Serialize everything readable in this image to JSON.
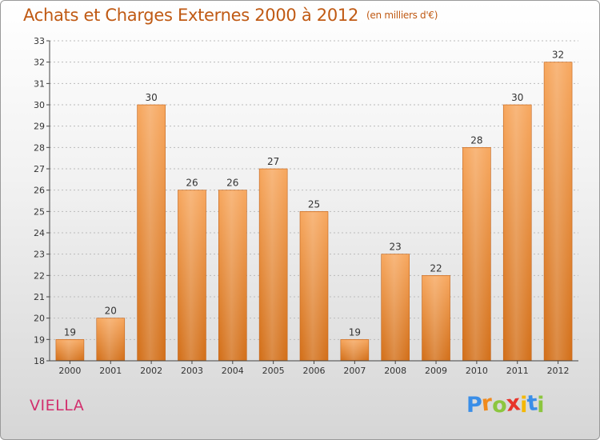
{
  "header": {
    "title": "Achats et Charges Externes 2000 à 2012",
    "unit": "(en milliers d'€)"
  },
  "commune": "VIELLA",
  "logo": {
    "letters": [
      "P",
      "r",
      "o",
      "x",
      "i",
      "t",
      "i"
    ],
    "colors": [
      "#3a8ee8",
      "#f08a1c",
      "#8cc63f",
      "#e8342a",
      "#f5b800",
      "#3a8ee8",
      "#8cc63f"
    ]
  },
  "colors": {
    "bar_top": "#f7a860",
    "bar_bottom": "#d3711c",
    "axis": "#444444",
    "grid": "#bbbbbb",
    "title": "#c05a14",
    "commune": "#d2306e"
  },
  "chart_data": {
    "type": "bar",
    "categories": [
      "2000",
      "2001",
      "2002",
      "2003",
      "2004",
      "2005",
      "2006",
      "2007",
      "2008",
      "2009",
      "2010",
      "2011",
      "2012"
    ],
    "values": [
      19,
      20,
      30,
      26,
      26,
      27,
      25,
      19,
      23,
      22,
      28,
      30,
      32
    ],
    "title": "Achats et Charges Externes 2000 à 2012",
    "xlabel": "",
    "ylabel": "",
    "ylim": [
      18,
      33
    ],
    "yticks": [
      18,
      19,
      20,
      21,
      22,
      23,
      24,
      25,
      26,
      27,
      28,
      29,
      30,
      31,
      32,
      33
    ],
    "grid": true,
    "data_labels": true
  }
}
